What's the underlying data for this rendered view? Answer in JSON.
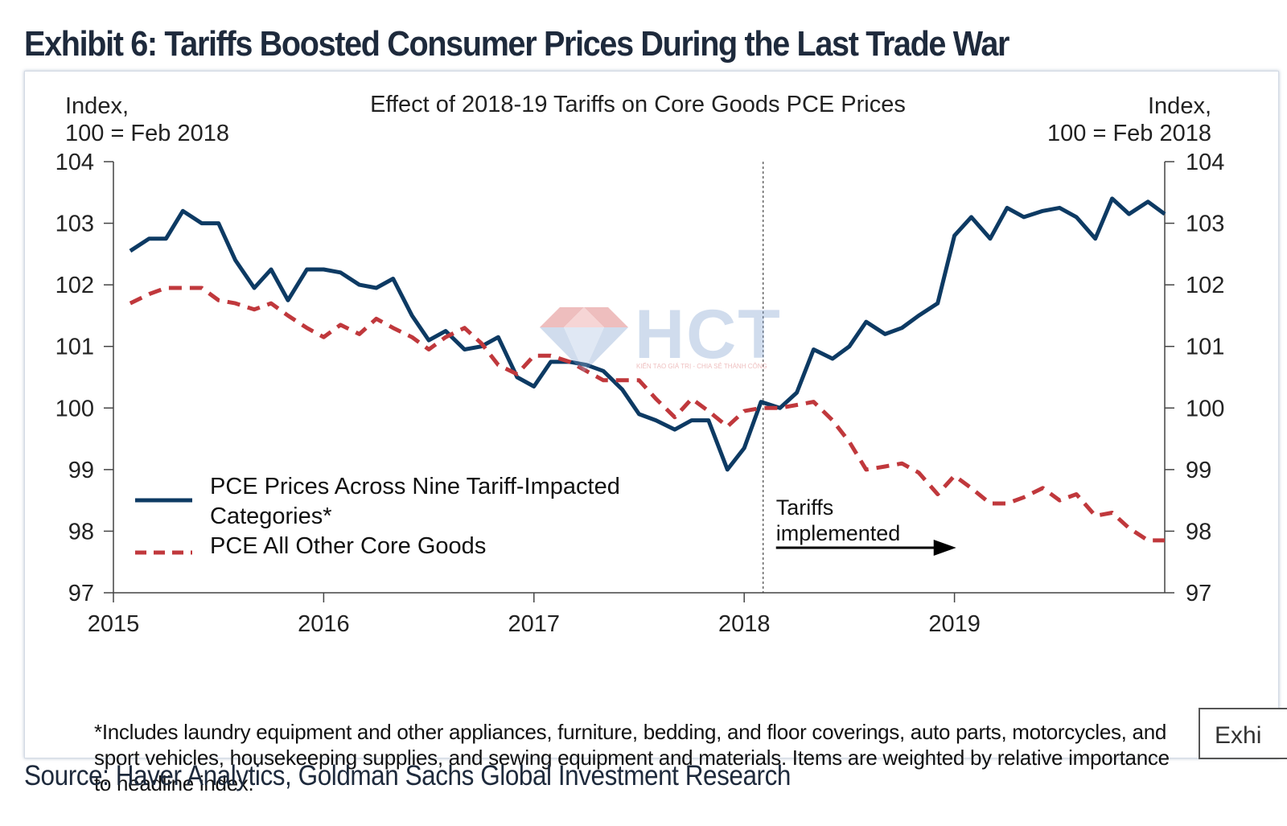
{
  "exhibit": {
    "title": "Exhibit 6: Tariffs Boosted Consumer Prices During the Last Trade War",
    "source": "Source: Haver Analytics, Goldman Sachs Global Investment Research",
    "tab_label": "Exhi",
    "watermark": {
      "text": "HCT",
      "tagline": "KIẾN TẠO GIÁ TRỊ - CHIA SẺ THÀNH CÔNG",
      "colors": {
        "text": "#7a9ccc",
        "accent": "#d04848"
      }
    }
  },
  "chart_data": {
    "type": "line",
    "title": "Effect of 2018-19 Tariffs on Core Goods PCE Prices",
    "ylabel_left": [
      "Index,",
      "100 = Feb 2018"
    ],
    "ylabel_right": [
      "Index,",
      "100 = Feb 2018"
    ],
    "xlim": [
      2015.0,
      2020.0
    ],
    "ylim": [
      97,
      104
    ],
    "yticks": [
      97,
      98,
      99,
      100,
      101,
      102,
      103,
      104
    ],
    "xticks": [
      2015,
      2016,
      2017,
      2018,
      2019
    ],
    "xtick_labels": [
      "2015",
      "2016",
      "2017",
      "2018",
      "2019"
    ],
    "grid": false,
    "legend_position": "lower-left",
    "event": {
      "x": 2018.09,
      "label": [
        "Tariffs",
        "implemented"
      ]
    },
    "footnote": "*Includes laundry equipment and other appliances, furniture, bedding, and floor coverings, auto parts, motorcycles, and sport vehicles, housekeeping supplies, and sewing equipment and materials. Items are weighted by relative importance to headline index.",
    "series": [
      {
        "name": "PCE Prices Across Nine Tariff-Impacted Categories*",
        "legend_lines": [
          "PCE Prices Across Nine Tariff-Impacted",
          "Categories*"
        ],
        "style": "solid",
        "color": "#0d3a63",
        "x": [
          2015.08,
          2015.17,
          2015.25,
          2015.33,
          2015.42,
          2015.5,
          2015.58,
          2015.67,
          2015.75,
          2015.83,
          2015.92,
          2016.0,
          2016.08,
          2016.17,
          2016.25,
          2016.33,
          2016.42,
          2016.5,
          2016.58,
          2016.67,
          2016.75,
          2016.83,
          2016.92,
          2017.0,
          2017.08,
          2017.17,
          2017.25,
          2017.33,
          2017.42,
          2017.5,
          2017.58,
          2017.67,
          2017.75,
          2017.83,
          2017.92,
          2018.0,
          2018.08,
          2018.17,
          2018.25,
          2018.33,
          2018.42,
          2018.5,
          2018.58,
          2018.67,
          2018.75,
          2018.83,
          2018.92,
          2019.0,
          2019.08,
          2019.17,
          2019.25,
          2019.33,
          2019.42,
          2019.5,
          2019.58,
          2019.67,
          2019.75,
          2019.83,
          2019.92,
          2020.0
        ],
        "values": [
          102.55,
          102.75,
          102.75,
          103.2,
          103.0,
          103.0,
          102.4,
          101.95,
          102.25,
          101.75,
          102.25,
          102.25,
          102.2,
          102.0,
          101.95,
          102.1,
          101.5,
          101.1,
          101.25,
          100.95,
          101.0,
          101.15,
          100.5,
          100.35,
          100.75,
          100.75,
          100.7,
          100.6,
          100.3,
          99.9,
          99.8,
          99.65,
          99.8,
          99.8,
          99.0,
          99.35,
          100.1,
          100.0,
          100.25,
          100.95,
          100.8,
          101.0,
          101.4,
          101.2,
          101.3,
          101.5,
          101.7,
          102.8,
          103.1,
          102.75,
          103.25,
          103.1,
          103.2,
          103.25,
          103.1,
          102.75,
          103.4,
          103.15,
          103.35,
          103.15
        ]
      },
      {
        "name": "PCE All Other Core Goods",
        "legend_lines": [
          "PCE All Other Core Goods"
        ],
        "style": "dashed",
        "color": "#c0383c",
        "x": [
          2015.08,
          2015.17,
          2015.25,
          2015.33,
          2015.42,
          2015.5,
          2015.58,
          2015.67,
          2015.75,
          2015.83,
          2015.92,
          2016.0,
          2016.08,
          2016.17,
          2016.25,
          2016.33,
          2016.42,
          2016.5,
          2016.58,
          2016.67,
          2016.75,
          2016.83,
          2016.92,
          2017.0,
          2017.08,
          2017.17,
          2017.25,
          2017.33,
          2017.42,
          2017.5,
          2017.58,
          2017.67,
          2017.75,
          2017.83,
          2017.92,
          2018.0,
          2018.08,
          2018.17,
          2018.25,
          2018.33,
          2018.42,
          2018.5,
          2018.58,
          2018.67,
          2018.75,
          2018.83,
          2018.92,
          2019.0,
          2019.08,
          2019.17,
          2019.25,
          2019.33,
          2019.42,
          2019.5,
          2019.58,
          2019.67,
          2019.75,
          2019.83,
          2019.92,
          2020.0
        ],
        "values": [
          101.7,
          101.85,
          101.95,
          101.95,
          101.95,
          101.75,
          101.7,
          101.6,
          101.7,
          101.5,
          101.3,
          101.15,
          101.35,
          101.2,
          101.45,
          101.3,
          101.15,
          100.95,
          101.15,
          101.3,
          101.05,
          100.7,
          100.55,
          100.85,
          100.85,
          100.75,
          100.6,
          100.45,
          100.45,
          100.45,
          100.15,
          99.85,
          100.15,
          99.95,
          99.7,
          99.95,
          100.0,
          100.0,
          100.05,
          100.1,
          99.8,
          99.45,
          99.0,
          99.05,
          99.1,
          98.95,
          98.6,
          98.9,
          98.7,
          98.45,
          98.45,
          98.55,
          98.7,
          98.5,
          98.6,
          98.25,
          98.3,
          98.05,
          97.85,
          97.85
        ]
      }
    ]
  }
}
